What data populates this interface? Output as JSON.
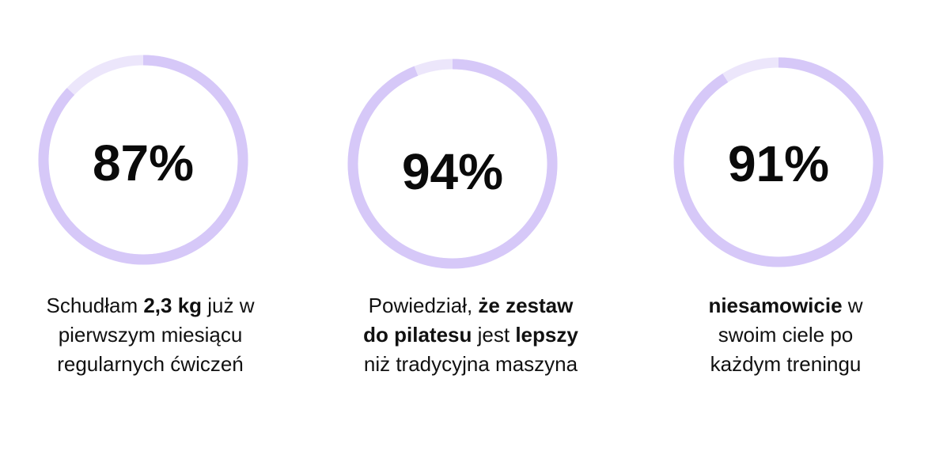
{
  "colors": {
    "ring_track": "#ece6fb",
    "ring_fill": "#d6c8f8",
    "text": "#111111"
  },
  "stats": [
    {
      "percent": "87%",
      "value": 0.87,
      "caption": {
        "line1": {
          "a": "Schudłam ",
          "b": "2,3 kg",
          "c": " już w"
        },
        "line2": "pierwszym miesiącu",
        "line3": "regularnych ćwiczeń"
      }
    },
    {
      "percent": "94%",
      "value": 0.94,
      "caption": {
        "line1": {
          "a": "Powiedział, ",
          "b": "że zestaw"
        },
        "line2": {
          "a": "do pilatesu",
          "b": " jest ",
          "c": "lepszy"
        },
        "line3": "niż tradycyjna maszyna"
      }
    },
    {
      "percent": "91%",
      "value": 0.91,
      "caption": {
        "line1": {
          "a": "niesamowicie",
          "b": " w"
        },
        "line2": "swoim ciele po",
        "line3": "każdym treningu"
      }
    }
  ]
}
